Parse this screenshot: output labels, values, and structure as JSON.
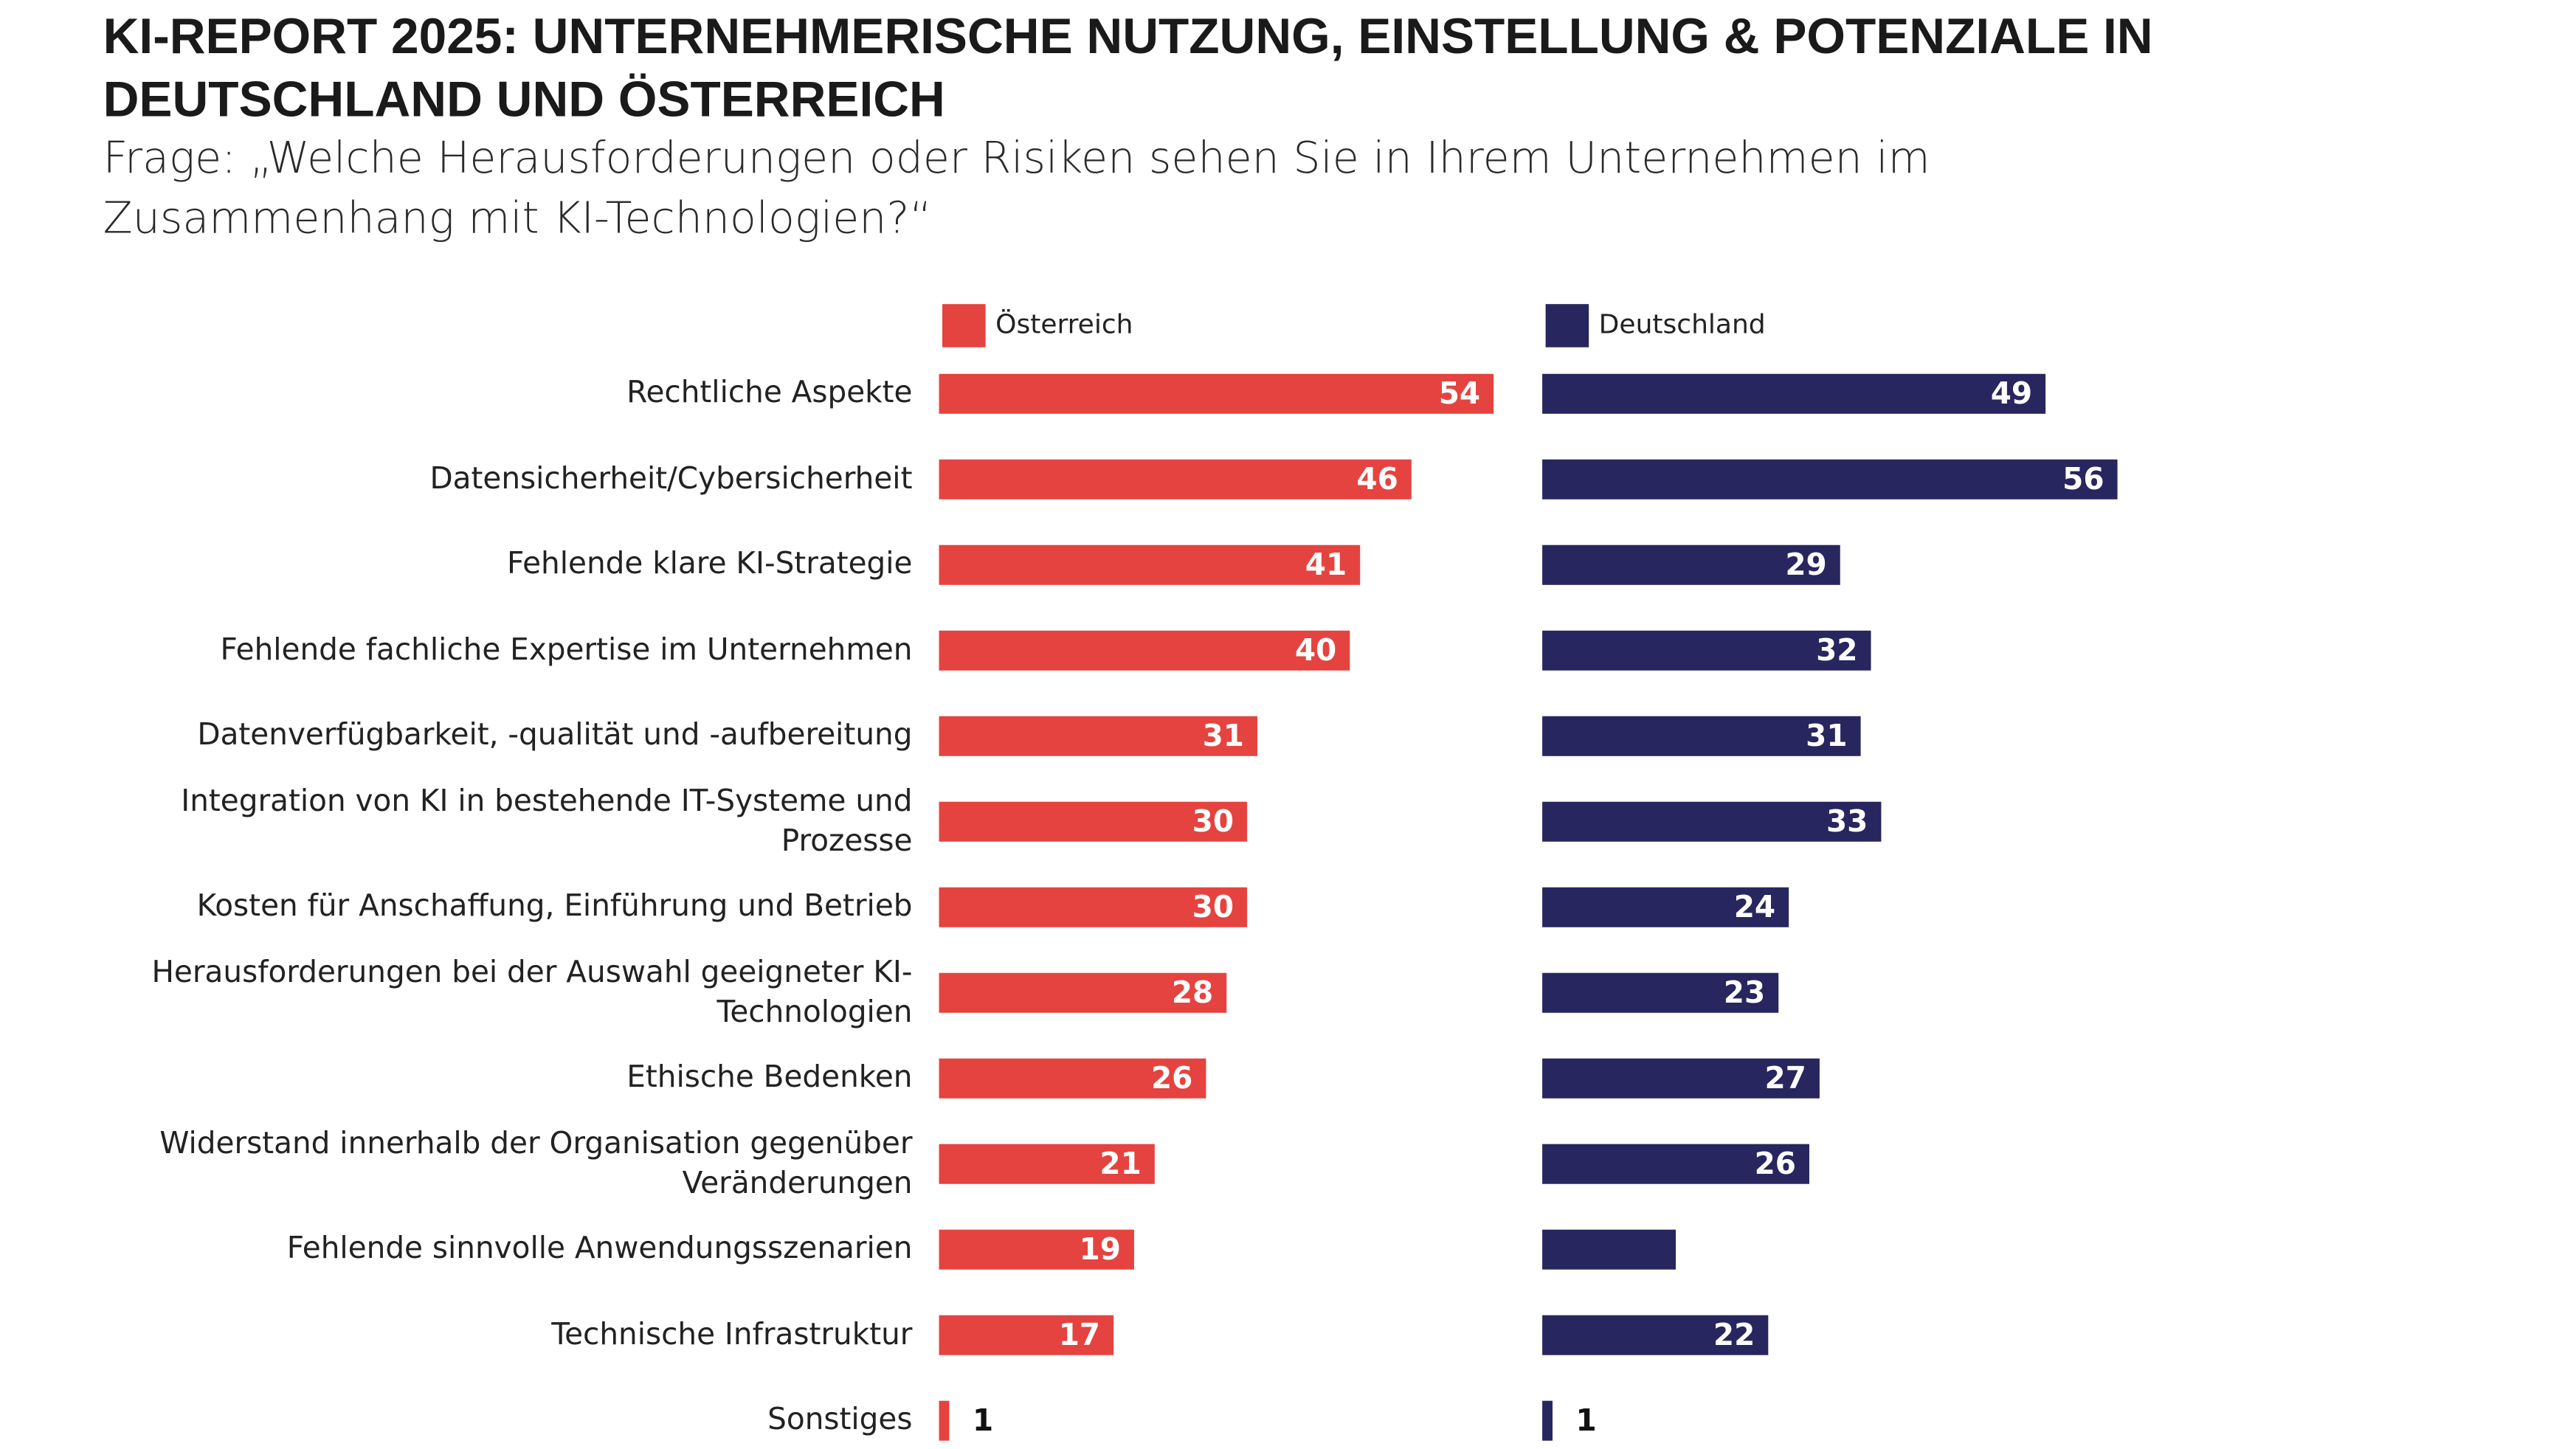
{
  "chart_data": {
    "type": "bar",
    "orientation": "horizontal",
    "title": "KI-REPORT 2025: UNTERNEHMERISCHE NUTZUNG, EINSTELLUNG & POTENZIALE IN DEUTSCHLAND UND ÖSTERREICH",
    "subtitle": "Frage: „Welche Herausforderungen oder Risiken sehen Sie in Ihrem Unternehmen im Zusammenhang mit KI-Technologien?“",
    "categories": [
      "Rechtliche Aspekte",
      "Datensicherheit/Cybersicherheit",
      "Fehlende klare KI-Strategie",
      "Fehlende fachliche Expertise im Unternehmen",
      "Datenverfügbarkeit, -qualität und -aufbereitung",
      "Integration von KI in bestehende IT-Systeme und Prozesse",
      "Kosten für Anschaffung, Einführung und Betrieb",
      "Herausforderungen bei der Auswahl geeigneter KI-Technologien",
      "Ethische Bedenken",
      "Widerstand innerhalb der Organisation gegenüber Veränderungen",
      "Fehlende sinnvolle Anwendungsszenarien",
      "Technische Infrastruktur",
      "Sonstiges"
    ],
    "series": [
      {
        "name": "Österreich",
        "color": "#e5433f",
        "values": [
          54,
          46,
          41,
          40,
          31,
          30,
          30,
          28,
          26,
          21,
          19,
          17,
          1
        ]
      },
      {
        "name": "Deutschland",
        "color": "#27265e",
        "values": [
          49,
          56,
          29,
          32,
          31,
          33,
          24,
          23,
          27,
          26,
          13,
          22,
          1
        ],
        "value_labels": [
          "49",
          "56",
          "29",
          "32",
          "31",
          "33",
          "24",
          "23",
          "27",
          "26",
          null,
          "22",
          "1"
        ]
      }
    ]
  }
}
